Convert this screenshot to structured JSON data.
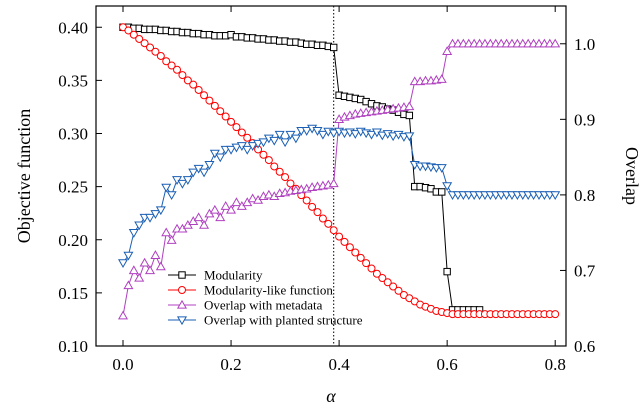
{
  "chart_data": {
    "type": "line",
    "xlabel": "α",
    "ylabel_left": "Objective function",
    "ylabel_right": "Overlap",
    "xlim": [
      -0.05,
      0.82
    ],
    "ylim_left": [
      0.1,
      0.42
    ],
    "ylim_right": [
      0.6,
      1.05
    ],
    "x_ticks": [
      0.0,
      0.2,
      0.4,
      0.6,
      0.8
    ],
    "x_tick_labels": [
      "0.0",
      "0.2",
      "0.4",
      "0.6",
      "0.8"
    ],
    "y_left_ticks": [
      0.1,
      0.15,
      0.2,
      0.25,
      0.3,
      0.35,
      0.4
    ],
    "y_left_tick_labels": [
      "0.10",
      "0.15",
      "0.20",
      "0.25",
      "0.30",
      "0.35",
      "0.40"
    ],
    "y_right_ticks": [
      0.6,
      0.7,
      0.8,
      0.9,
      1.0
    ],
    "y_right_tick_labels": [
      "0.6",
      "0.7",
      "0.8",
      "0.9",
      "1.0"
    ],
    "vline_x": 0.39,
    "legend_placement": "lower-center",
    "grid": false,
    "series": [
      {
        "name": "Modularity",
        "axis": "left",
        "color": "#000000",
        "marker": "square",
        "x": [
          0.0,
          0.01,
          0.02,
          0.03,
          0.04,
          0.05,
          0.06,
          0.07,
          0.08,
          0.09,
          0.1,
          0.11,
          0.12,
          0.13,
          0.14,
          0.15,
          0.16,
          0.17,
          0.18,
          0.19,
          0.2,
          0.21,
          0.22,
          0.23,
          0.24,
          0.25,
          0.26,
          0.27,
          0.28,
          0.29,
          0.3,
          0.31,
          0.32,
          0.33,
          0.34,
          0.35,
          0.36,
          0.37,
          0.38,
          0.39,
          0.4,
          0.41,
          0.42,
          0.43,
          0.44,
          0.45,
          0.46,
          0.47,
          0.48,
          0.49,
          0.5,
          0.51,
          0.52,
          0.53,
          0.54,
          0.55,
          0.56,
          0.57,
          0.58,
          0.59,
          0.6,
          0.61,
          0.62,
          0.63,
          0.64,
          0.65,
          0.66
        ],
        "values": [
          0.4,
          0.4,
          0.399,
          0.399,
          0.398,
          0.398,
          0.398,
          0.397,
          0.397,
          0.396,
          0.396,
          0.395,
          0.395,
          0.394,
          0.394,
          0.393,
          0.393,
          0.392,
          0.392,
          0.392,
          0.393,
          0.391,
          0.391,
          0.39,
          0.39,
          0.389,
          0.389,
          0.388,
          0.388,
          0.387,
          0.387,
          0.386,
          0.386,
          0.385,
          0.384,
          0.384,
          0.383,
          0.383,
          0.382,
          0.381,
          0.336,
          0.335,
          0.334,
          0.333,
          0.332,
          0.33,
          0.328,
          0.326,
          0.325,
          0.323,
          0.322,
          0.32,
          0.318,
          0.317,
          0.25,
          0.25,
          0.249,
          0.248,
          0.245,
          0.245,
          0.17,
          0.134,
          0.134,
          0.134,
          0.134,
          0.134,
          0.134
        ]
      },
      {
        "name": "Modularity-like function",
        "axis": "left",
        "color": "#ff0000",
        "marker": "circle",
        "x": [
          0.0,
          0.01,
          0.02,
          0.03,
          0.04,
          0.05,
          0.06,
          0.07,
          0.08,
          0.09,
          0.1,
          0.11,
          0.12,
          0.13,
          0.14,
          0.15,
          0.16,
          0.17,
          0.18,
          0.19,
          0.2,
          0.21,
          0.22,
          0.23,
          0.24,
          0.25,
          0.26,
          0.27,
          0.28,
          0.29,
          0.3,
          0.31,
          0.32,
          0.33,
          0.34,
          0.35,
          0.36,
          0.37,
          0.38,
          0.39,
          0.4,
          0.41,
          0.42,
          0.43,
          0.44,
          0.45,
          0.46,
          0.47,
          0.48,
          0.49,
          0.5,
          0.51,
          0.52,
          0.53,
          0.54,
          0.55,
          0.56,
          0.57,
          0.58,
          0.59,
          0.6,
          0.61,
          0.62,
          0.63,
          0.64,
          0.65,
          0.66,
          0.67,
          0.68,
          0.69,
          0.7,
          0.71,
          0.72,
          0.73,
          0.74,
          0.75,
          0.76,
          0.77,
          0.78,
          0.79,
          0.8
        ],
        "values": [
          0.4,
          0.397,
          0.393,
          0.389,
          0.385,
          0.381,
          0.377,
          0.373,
          0.368,
          0.364,
          0.36,
          0.355,
          0.35,
          0.346,
          0.341,
          0.336,
          0.331,
          0.326,
          0.321,
          0.316,
          0.311,
          0.306,
          0.301,
          0.296,
          0.291,
          0.285,
          0.28,
          0.275,
          0.269,
          0.264,
          0.259,
          0.253,
          0.248,
          0.242,
          0.237,
          0.231,
          0.226,
          0.22,
          0.215,
          0.209,
          0.203,
          0.198,
          0.193,
          0.188,
          0.183,
          0.178,
          0.173,
          0.168,
          0.164,
          0.16,
          0.156,
          0.152,
          0.148,
          0.145,
          0.142,
          0.139,
          0.137,
          0.135,
          0.133,
          0.132,
          0.131,
          0.13,
          0.13,
          0.13,
          0.13,
          0.13,
          0.13,
          0.13,
          0.13,
          0.13,
          0.13,
          0.13,
          0.13,
          0.13,
          0.13,
          0.13,
          0.13,
          0.13,
          0.13,
          0.13,
          0.13
        ]
      },
      {
        "name": "Overlap with metadata",
        "axis": "right",
        "color": "#b040c0",
        "marker": "triangle-up",
        "x": [
          0.0,
          0.01,
          0.02,
          0.03,
          0.04,
          0.05,
          0.06,
          0.07,
          0.08,
          0.09,
          0.1,
          0.11,
          0.12,
          0.13,
          0.14,
          0.15,
          0.16,
          0.17,
          0.18,
          0.19,
          0.2,
          0.21,
          0.22,
          0.23,
          0.24,
          0.25,
          0.26,
          0.27,
          0.28,
          0.29,
          0.3,
          0.31,
          0.32,
          0.33,
          0.34,
          0.35,
          0.36,
          0.37,
          0.38,
          0.39,
          0.4,
          0.41,
          0.42,
          0.43,
          0.44,
          0.45,
          0.46,
          0.47,
          0.48,
          0.49,
          0.5,
          0.51,
          0.52,
          0.53,
          0.54,
          0.55,
          0.56,
          0.57,
          0.58,
          0.59,
          0.6,
          0.61,
          0.62,
          0.63,
          0.64,
          0.65,
          0.66,
          0.67,
          0.68,
          0.69,
          0.7,
          0.71,
          0.72,
          0.73,
          0.74,
          0.75,
          0.76,
          0.77,
          0.78,
          0.79,
          0.8
        ],
        "values": [
          0.64,
          0.68,
          0.7,
          0.69,
          0.71,
          0.7,
          0.72,
          0.705,
          0.75,
          0.74,
          0.755,
          0.755,
          0.76,
          0.765,
          0.77,
          0.76,
          0.775,
          0.78,
          0.77,
          0.785,
          0.78,
          0.79,
          0.785,
          0.79,
          0.795,
          0.793,
          0.798,
          0.8,
          0.798,
          0.802,
          0.803,
          0.805,
          0.806,
          0.807,
          0.808,
          0.81,
          0.811,
          0.812,
          0.813,
          0.815,
          0.9,
          0.903,
          0.905,
          0.907,
          0.908,
          0.909,
          0.91,
          0.911,
          0.912,
          0.913,
          0.914,
          0.915,
          0.916,
          0.917,
          0.95,
          0.95,
          0.951,
          0.951,
          0.952,
          0.953,
          0.99,
          1.0,
          1.0,
          1.0,
          1.0,
          1.0,
          1.0,
          1.0,
          1.0,
          1.0,
          1.0,
          1.0,
          1.0,
          1.0,
          1.0,
          1.0,
          1.0,
          1.0,
          1.0,
          1.0,
          1.0
        ]
      },
      {
        "name": "Overlap with planted structure",
        "axis": "right",
        "color": "#1a5fb4",
        "marker": "triangle-down",
        "x": [
          0.0,
          0.01,
          0.02,
          0.03,
          0.04,
          0.05,
          0.06,
          0.07,
          0.08,
          0.09,
          0.1,
          0.11,
          0.12,
          0.13,
          0.14,
          0.15,
          0.16,
          0.17,
          0.18,
          0.19,
          0.2,
          0.21,
          0.22,
          0.23,
          0.24,
          0.25,
          0.26,
          0.27,
          0.28,
          0.29,
          0.3,
          0.31,
          0.32,
          0.33,
          0.34,
          0.35,
          0.36,
          0.37,
          0.38,
          0.39,
          0.4,
          0.41,
          0.42,
          0.43,
          0.44,
          0.45,
          0.46,
          0.47,
          0.48,
          0.49,
          0.5,
          0.51,
          0.52,
          0.53,
          0.54,
          0.55,
          0.56,
          0.57,
          0.58,
          0.59,
          0.6,
          0.61,
          0.62,
          0.63,
          0.64,
          0.65,
          0.66,
          0.67,
          0.68,
          0.69,
          0.7,
          0.71,
          0.72,
          0.73,
          0.74,
          0.75,
          0.76,
          0.77,
          0.78,
          0.79,
          0.8
        ],
        "values": [
          0.71,
          0.72,
          0.75,
          0.76,
          0.77,
          0.77,
          0.775,
          0.78,
          0.81,
          0.8,
          0.82,
          0.815,
          0.82,
          0.83,
          0.835,
          0.83,
          0.84,
          0.855,
          0.85,
          0.86,
          0.86,
          0.863,
          0.865,
          0.86,
          0.865,
          0.868,
          0.87,
          0.875,
          0.872,
          0.88,
          0.87,
          0.88,
          0.875,
          0.885,
          0.885,
          0.888,
          0.885,
          0.88,
          0.884,
          0.882,
          0.884,
          0.882,
          0.883,
          0.881,
          0.884,
          0.882,
          0.88,
          0.883,
          0.879,
          0.881,
          0.878,
          0.88,
          0.877,
          0.878,
          0.84,
          0.838,
          0.838,
          0.837,
          0.836,
          0.836,
          0.812,
          0.8,
          0.8,
          0.8,
          0.8,
          0.8,
          0.8,
          0.8,
          0.8,
          0.8,
          0.8,
          0.8,
          0.8,
          0.8,
          0.8,
          0.8,
          0.8,
          0.8,
          0.8,
          0.8,
          0.8
        ]
      }
    ]
  }
}
